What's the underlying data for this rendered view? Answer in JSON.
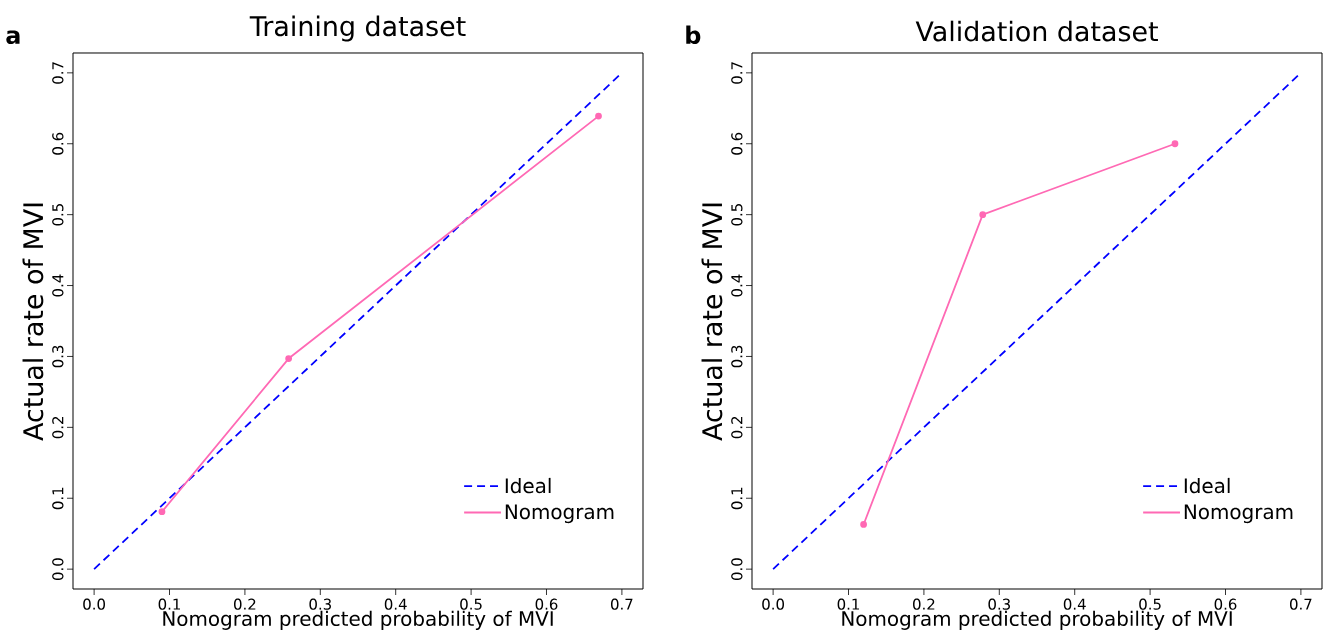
{
  "chart_data": [
    {
      "type": "line",
      "title": "Training dataset",
      "xlabel": "Nomogram predicted probability of MVI",
      "ylabel": "Actual rate of MVI",
      "annotations": [
        "a"
      ],
      "xlim": [
        -0.028,
        0.728
      ],
      "ylim": [
        -0.028,
        0.728
      ],
      "xticks": [
        {
          "value": 0,
          "label": "0.0"
        },
        0.1,
        0.2,
        0.3,
        0.4,
        0.5,
        0.6,
        0.7
      ],
      "yticks": [
        {
          "value": 0,
          "label": "0.0"
        },
        0.1,
        0.2,
        0.3,
        0.4,
        0.5,
        0.6,
        0.7
      ],
      "legend": "bottom right",
      "grid": false,
      "series": [
        {
          "name": "Ideal",
          "color": "#0000ff",
          "line_style": "dashed",
          "marker": "none",
          "x": [
            0,
            0.7
          ],
          "values": [
            0,
            0.7
          ]
        },
        {
          "name": "Nomogram",
          "color": "#ff69b4",
          "line_style": "solid",
          "marker": "circle",
          "x": [
            0.09,
            0.258,
            0.669
          ],
          "values": [
            0.081,
            0.297,
            0.639
          ]
        }
      ]
    },
    {
      "type": "line",
      "title": "Validation dataset",
      "xlabel": "Nomogram predicted probability of MVI",
      "ylabel": "Actual rate of MVI",
      "annotations": [
        "b"
      ],
      "xlim": [
        -0.028,
        0.728
      ],
      "ylim": [
        -0.028,
        0.728
      ],
      "xticks": [
        {
          "value": 0,
          "label": "0.0"
        },
        0.1,
        0.2,
        0.3,
        0.4,
        0.5,
        0.6,
        0.7
      ],
      "yticks": [
        {
          "value": 0,
          "label": "0.0"
        },
        0.1,
        0.2,
        0.3,
        0.4,
        0.5,
        0.6,
        0.7
      ],
      "legend": "bottom right",
      "grid": false,
      "series": [
        {
          "name": "Ideal",
          "color": "#0000ff",
          "line_style": "dashed",
          "marker": "none",
          "x": [
            0,
            0.7
          ],
          "values": [
            0,
            0.7
          ]
        },
        {
          "name": "Nomogram",
          "color": "#ff69b4",
          "line_style": "solid",
          "marker": "circle",
          "x": [
            0.12,
            0.278,
            0.533
          ],
          "values": [
            0.063,
            0.5,
            0.6
          ]
        }
      ]
    }
  ]
}
